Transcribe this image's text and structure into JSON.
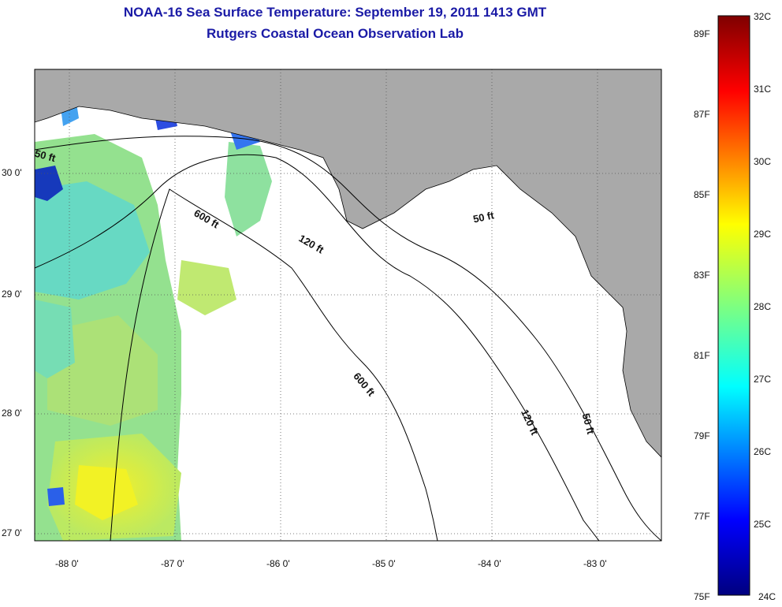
{
  "title_line1": "NOAA-16 Sea Surface Temperature:  September 19, 2011 1413 GMT",
  "title_line2": "Rutgers Coastal Ocean Observation Lab",
  "map": {
    "lat_labels": [
      "30 0'",
      "29 0'",
      "28 0'",
      "27 0'"
    ],
    "lon_labels": [
      "-88 0'",
      "-87 0'",
      "-86 0'",
      "-85 0'",
      "-84 0'",
      "-83 0'"
    ],
    "contour_labels": [
      "50 ft",
      "600 ft",
      "120 ft",
      "50 ft",
      "600 ft",
      "120 ft",
      "50 ft"
    ],
    "land_color": "#a9a9a9",
    "ocean_color": "#ffffff"
  },
  "colorbar": {
    "celsius_labels": [
      "32C",
      "31C",
      "30C",
      "29C",
      "28C",
      "27C",
      "26C",
      "25C",
      "24C"
    ],
    "fahrenheit_labels": [
      "89F",
      "87F",
      "85F",
      "83F",
      "81F",
      "79F",
      "77F",
      "75F"
    ]
  }
}
